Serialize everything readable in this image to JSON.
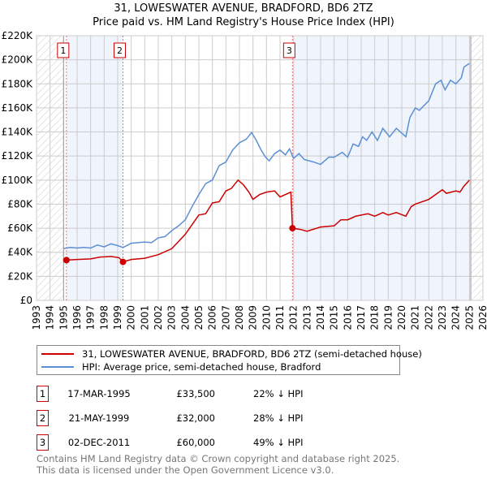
{
  "title": "31, LOWESWATER AVENUE, BRADFORD, BD6 2TZ",
  "subtitle": "Price paid vs. HM Land Registry's House Price Index (HPI)",
  "chart_data": {
    "type": "line",
    "title": "31, LOWESWATER AVENUE, BRADFORD, BD6 2TZ",
    "subtitle": "Price paid vs. HM Land Registry's House Price Index (HPI)",
    "xlim": [
      1993,
      2026
    ],
    "ylim": [
      0,
      220000
    ],
    "grid": true,
    "x_ticks": [
      "1993",
      "1994",
      "1995",
      "1996",
      "1997",
      "1998",
      "1999",
      "2000",
      "2001",
      "2002",
      "2003",
      "2004",
      "2005",
      "2006",
      "2007",
      "2008",
      "2009",
      "2010",
      "2011",
      "2012",
      "2013",
      "2014",
      "2015",
      "2016",
      "2017",
      "2018",
      "2019",
      "2020",
      "2021",
      "2022",
      "2023",
      "2024",
      "2025",
      "2026"
    ],
    "y_ticks": [
      {
        "value": 0,
        "label": "£0"
      },
      {
        "value": 20000,
        "label": "£20K"
      },
      {
        "value": 40000,
        "label": "£40K"
      },
      {
        "value": 60000,
        "label": "£60K"
      },
      {
        "value": 80000,
        "label": "£80K"
      },
      {
        "value": 100000,
        "label": "£100K"
      },
      {
        "value": 120000,
        "label": "£120K"
      },
      {
        "value": 140000,
        "label": "£140K"
      },
      {
        "value": 160000,
        "label": "£160K"
      },
      {
        "value": 180000,
        "label": "£180K"
      },
      {
        "value": 200000,
        "label": "£200K"
      },
      {
        "value": 220000,
        "label": "£220K"
      }
    ],
    "series": [
      {
        "name": "31, LOWESWATER AVENUE, BRADFORD, BD6 2TZ (semi-detached house)",
        "color": "#cc0000",
        "points": [
          [
            1995.21,
            33500
          ],
          [
            1996,
            34000
          ],
          [
            1997,
            34500
          ],
          [
            1997.7,
            36000
          ],
          [
            1998.5,
            36500
          ],
          [
            1999.1,
            35500
          ],
          [
            1999.39,
            32000
          ],
          [
            2000,
            34000
          ],
          [
            2001,
            35000
          ],
          [
            2002,
            38000
          ],
          [
            2003,
            43000
          ],
          [
            2004,
            55000
          ],
          [
            2005,
            71000
          ],
          [
            2005.5,
            72000
          ],
          [
            2006,
            81000
          ],
          [
            2006.5,
            82000
          ],
          [
            2007,
            91000
          ],
          [
            2007.4,
            93000
          ],
          [
            2007.9,
            100000
          ],
          [
            2008.3,
            96000
          ],
          [
            2008.7,
            90000
          ],
          [
            2009,
            84000
          ],
          [
            2009.5,
            88000
          ],
          [
            2010,
            90000
          ],
          [
            2010.6,
            91000
          ],
          [
            2011,
            86000
          ],
          [
            2011.8,
            90000
          ],
          [
            2011.92,
            60000
          ],
          [
            2012.5,
            59000
          ],
          [
            2013,
            57500
          ],
          [
            2014,
            61000
          ],
          [
            2015,
            62000
          ],
          [
            2015.5,
            67000
          ],
          [
            2016,
            67000
          ],
          [
            2016.6,
            70000
          ],
          [
            2017.5,
            72000
          ],
          [
            2018,
            70000
          ],
          [
            2018.6,
            73000
          ],
          [
            2019,
            71000
          ],
          [
            2019.6,
            73000
          ],
          [
            2020.3,
            70000
          ],
          [
            2020.7,
            78000
          ],
          [
            2021,
            80000
          ],
          [
            2022,
            84000
          ],
          [
            2022.5,
            88000
          ],
          [
            2023,
            92000
          ],
          [
            2023.3,
            89000
          ],
          [
            2024,
            91000
          ],
          [
            2024.3,
            90000
          ],
          [
            2024.6,
            95000
          ],
          [
            2025,
            100000
          ]
        ]
      },
      {
        "name": "HPI: Average price, semi-detached house, Bradford",
        "color": "#5b8fd4",
        "points": [
          [
            1995,
            43000
          ],
          [
            1995.5,
            44000
          ],
          [
            1996,
            43500
          ],
          [
            1996.5,
            44000
          ],
          [
            1997,
            43500
          ],
          [
            1997.5,
            46000
          ],
          [
            1998,
            44500
          ],
          [
            1998.5,
            47000
          ],
          [
            1999,
            45500
          ],
          [
            1999.4,
            44000
          ],
          [
            2000,
            47500
          ],
          [
            2000.5,
            48000
          ],
          [
            2001,
            48500
          ],
          [
            2001.5,
            48000
          ],
          [
            2002,
            52000
          ],
          [
            2002.5,
            53000
          ],
          [
            2003,
            58000
          ],
          [
            2003.5,
            62000
          ],
          [
            2004,
            67000
          ],
          [
            2004.5,
            78000
          ],
          [
            2005,
            88000
          ],
          [
            2005.5,
            97000
          ],
          [
            2006,
            100000
          ],
          [
            2006.5,
            112000
          ],
          [
            2007,
            115000
          ],
          [
            2007.5,
            125000
          ],
          [
            2008,
            131000
          ],
          [
            2008.5,
            134000
          ],
          [
            2008.9,
            139500
          ],
          [
            2009.2,
            134000
          ],
          [
            2009.6,
            125000
          ],
          [
            2009.9,
            119500
          ],
          [
            2010.2,
            116000
          ],
          [
            2010.6,
            122000
          ],
          [
            2011,
            125000
          ],
          [
            2011.4,
            121000
          ],
          [
            2011.7,
            126000
          ],
          [
            2012,
            118000
          ],
          [
            2012.4,
            122000
          ],
          [
            2012.8,
            117000
          ],
          [
            2013,
            116500
          ],
          [
            2013.5,
            115000
          ],
          [
            2014,
            113000
          ],
          [
            2014.6,
            119000
          ],
          [
            2015,
            119000
          ],
          [
            2015.6,
            123000
          ],
          [
            2016,
            119000
          ],
          [
            2016.4,
            130000
          ],
          [
            2016.8,
            128000
          ],
          [
            2017.1,
            136000
          ],
          [
            2017.4,
            133000
          ],
          [
            2017.8,
            140000
          ],
          [
            2018.2,
            133000
          ],
          [
            2018.6,
            143000
          ],
          [
            2019.1,
            136000
          ],
          [
            2019.6,
            143000
          ],
          [
            2020.3,
            136000
          ],
          [
            2020.6,
            152000
          ],
          [
            2021,
            160000
          ],
          [
            2021.3,
            158000
          ],
          [
            2022,
            166000
          ],
          [
            2022.5,
            180000
          ],
          [
            2022.9,
            183000
          ],
          [
            2023.2,
            175000
          ],
          [
            2023.6,
            183000
          ],
          [
            2024,
            180000
          ],
          [
            2024.4,
            185000
          ],
          [
            2024.6,
            194000
          ],
          [
            2025,
            197000
          ]
        ]
      }
    ],
    "sales": [
      {
        "id": "1",
        "x": 1995.21,
        "value": 33500
      },
      {
        "id": "2",
        "x": 1999.39,
        "value": 32000
      },
      {
        "id": "3",
        "x": 2011.92,
        "value": 60000
      }
    ],
    "shaded_ranges": [
      [
        1995.21,
        1999.39
      ],
      [
        2011.92,
        2025.1
      ]
    ],
    "hatched_ranges": [
      [
        1993,
        1995
      ],
      [
        2025.1,
        2026
      ]
    ]
  },
  "legend": {
    "items": [
      {
        "label": "31, LOWESWATER AVENUE, BRADFORD, BD6 2TZ (semi-detached house)",
        "color": "#cc0000"
      },
      {
        "label": "HPI: Average price, semi-detached house, Bradford",
        "color": "#5b8fd4"
      }
    ]
  },
  "table": [
    {
      "num": "1",
      "date": "17-MAR-1995",
      "price": "£33,500",
      "hpi": "22% ↓ HPI"
    },
    {
      "num": "2",
      "date": "21-MAY-1999",
      "price": "£32,000",
      "hpi": "28% ↓ HPI"
    },
    {
      "num": "3",
      "date": "02-DEC-2011",
      "price": "£60,000",
      "hpi": "49% ↓ HPI"
    }
  ],
  "footer": {
    "line1": "Contains HM Land Registry data © Crown copyright and database right 2025.",
    "line2": "This data is licensed under the Open Government Licence v3.0."
  }
}
